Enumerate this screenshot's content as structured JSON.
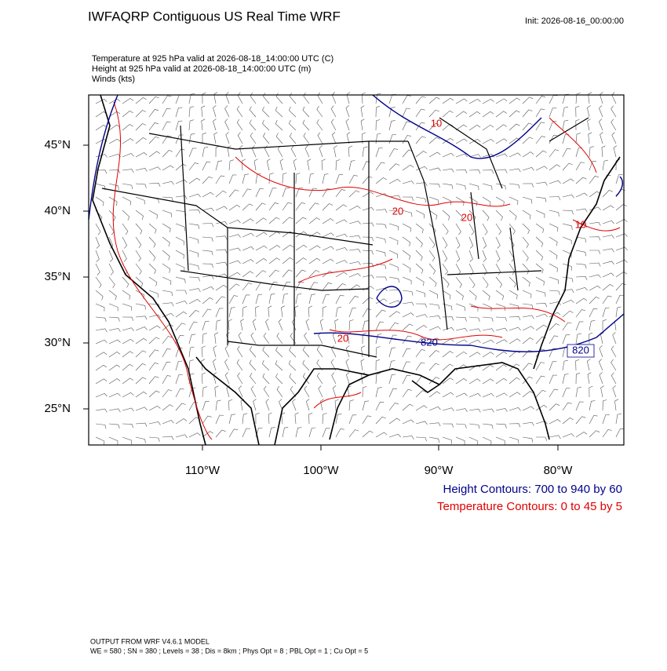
{
  "header": {
    "title": "IWFAQRP Contiguous US Real Time WRF",
    "init": "Init: 2026-08-16_00:00:00"
  },
  "fields": [
    "Temperature at 925 hPa valid at 2026-08-18_14:00:00 UTC   (C)",
    "Height at 925 hPa valid at 2026-08-18_14:00:00 UTC   (m)",
    "Winds   (kts)"
  ],
  "lat_labels": [
    "45°N",
    "40°N",
    "35°N",
    "30°N",
    "25°N"
  ],
  "lon_labels": [
    "110°W",
    "100°W",
    "90°W",
    "80°W"
  ],
  "contour_labels": [
    {
      "text": "10",
      "color": "#e00000"
    },
    {
      "text": "20",
      "color": "#e00000"
    },
    {
      "text": "20",
      "color": "#e00000"
    },
    {
      "text": "10",
      "color": "#e00000"
    },
    {
      "text": "20",
      "color": "#e00000"
    },
    {
      "text": "820",
      "color": "#00008b"
    },
    {
      "text": "820",
      "color": "#00008b"
    }
  ],
  "legend": [
    {
      "text": "Height Contours: 700 to 940 by 60",
      "color": "#00008b"
    },
    {
      "text": "Temperature Contours: 0 to 45 by 5",
      "color": "#e00000"
    }
  ],
  "footer": [
    "OUTPUT FROM WRF V4.6.1 MODEL",
    "WE = 580 ; SN = 380 ; Levels = 38 ; Dis = 8km ; Phys Opt = 8 ; PBL Opt = 1 ; Cu Opt = 5"
  ]
}
